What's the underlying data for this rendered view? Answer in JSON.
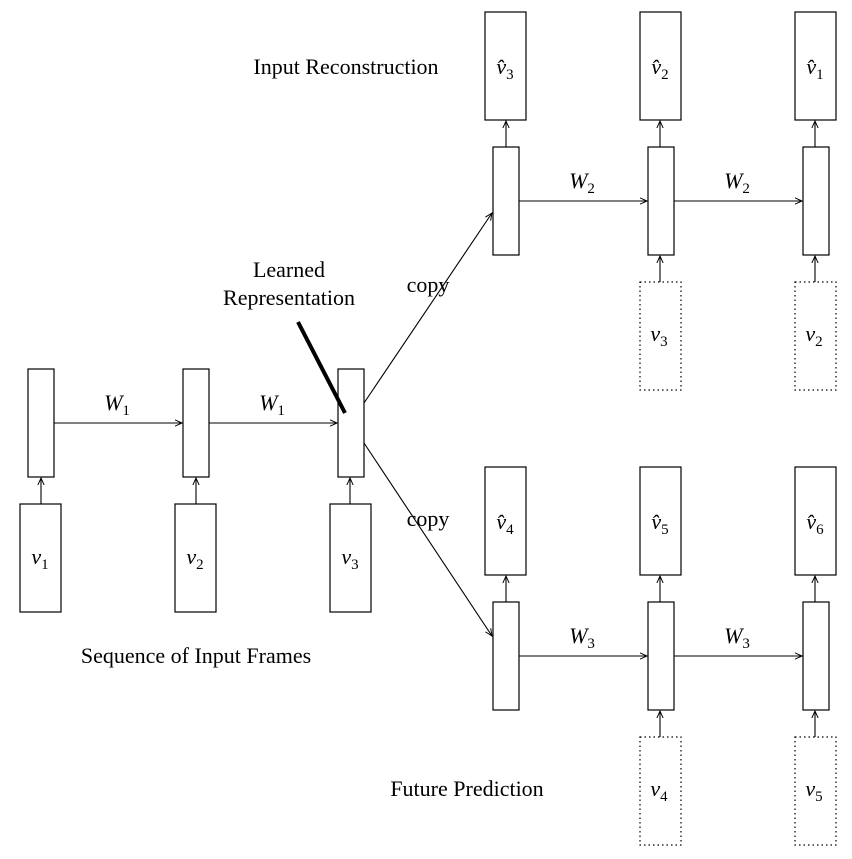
{
  "labels": {
    "input_reconstruction": "Input Reconstruction",
    "learned_representation_line1": "Learned",
    "learned_representation_line2": "Representation",
    "sequence_of_input_frames": "Sequence of Input Frames",
    "future_prediction": "Future Prediction",
    "copy_top": "copy",
    "copy_bottom": "copy"
  },
  "encoder": {
    "inputs": [
      {
        "base": "v",
        "sub": "1"
      },
      {
        "base": "v",
        "sub": "2"
      },
      {
        "base": "v",
        "sub": "3"
      }
    ],
    "weights": [
      {
        "base": "W",
        "sub": "1"
      },
      {
        "base": "W",
        "sub": "1"
      }
    ]
  },
  "reconstruction_decoder": {
    "outputs": [
      {
        "base": "v̂",
        "sub": "3"
      },
      {
        "base": "v̂",
        "sub": "2"
      },
      {
        "base": "v̂",
        "sub": "1"
      }
    ],
    "conditioning_inputs": [
      {
        "base": "v",
        "sub": "3"
      },
      {
        "base": "v",
        "sub": "2"
      }
    ],
    "weights": [
      {
        "base": "W",
        "sub": "2"
      },
      {
        "base": "W",
        "sub": "2"
      }
    ]
  },
  "prediction_decoder": {
    "outputs": [
      {
        "base": "v̂",
        "sub": "4"
      },
      {
        "base": "v̂",
        "sub": "5"
      },
      {
        "base": "v̂",
        "sub": "6"
      }
    ],
    "conditioning_inputs": [
      {
        "base": "v",
        "sub": "4"
      },
      {
        "base": "v",
        "sub": "5"
      }
    ],
    "weights": [
      {
        "base": "W",
        "sub": "3"
      },
      {
        "base": "W",
        "sub": "3"
      }
    ]
  }
}
